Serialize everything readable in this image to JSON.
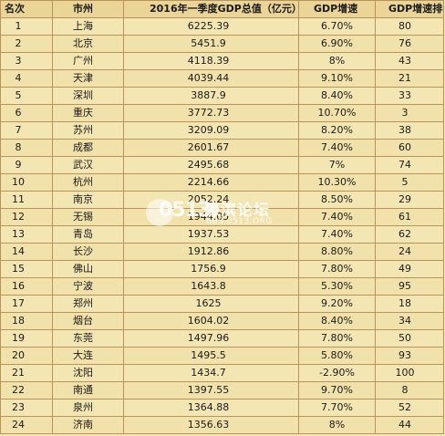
{
  "table": {
    "headers": {
      "rank": "名次",
      "city": "市州",
      "gdp": "2016年一季度GDP总值（亿元）",
      "growth": "GDP增速",
      "growth_rank": "GDP增速排名"
    },
    "rows": [
      {
        "rank": "1",
        "city": "上海",
        "gdp": "6225.39",
        "growth": "6.70%",
        "growth_rank": "80"
      },
      {
        "rank": "2",
        "city": "北京",
        "gdp": "5451.9",
        "growth": "6.90%",
        "growth_rank": "76"
      },
      {
        "rank": "3",
        "city": "广州",
        "gdp": "4118.39",
        "growth": "8%",
        "growth_rank": "43"
      },
      {
        "rank": "4",
        "city": "天津",
        "gdp": "4039.44",
        "growth": "9.10%",
        "growth_rank": "21"
      },
      {
        "rank": "5",
        "city": "深圳",
        "gdp": "3887.9",
        "growth": "8.40%",
        "growth_rank": "33"
      },
      {
        "rank": "6",
        "city": "重庆",
        "gdp": "3772.73",
        "growth": "10.70%",
        "growth_rank": "3"
      },
      {
        "rank": "7",
        "city": "苏州",
        "gdp": "3209.09",
        "growth": "8.20%",
        "growth_rank": "38"
      },
      {
        "rank": "8",
        "city": "成都",
        "gdp": "2601.67",
        "growth": "7.40%",
        "growth_rank": "60"
      },
      {
        "rank": "9",
        "city": "武汉",
        "gdp": "2495.68",
        "growth": "7%",
        "growth_rank": "74"
      },
      {
        "rank": "10",
        "city": "杭州",
        "gdp": "2214.66",
        "growth": "10.30%",
        "growth_rank": "5"
      },
      {
        "rank": "11",
        "city": "南京",
        "gdp": "2052.24",
        "growth": "8.50%",
        "growth_rank": "29"
      },
      {
        "rank": "12",
        "city": "无锡",
        "gdp": "1944.05",
        "growth": "7.40%",
        "growth_rank": "61"
      },
      {
        "rank": "13",
        "city": "青岛",
        "gdp": "1937.53",
        "growth": "7.40%",
        "growth_rank": "62"
      },
      {
        "rank": "14",
        "city": "长沙",
        "gdp": "1912.86",
        "growth": "8.80%",
        "growth_rank": "24"
      },
      {
        "rank": "15",
        "city": "佛山",
        "gdp": "1756.9",
        "growth": "7.80%",
        "growth_rank": "49"
      },
      {
        "rank": "16",
        "city": "宁波",
        "gdp": "1643.8",
        "growth": "5.30%",
        "growth_rank": "95"
      },
      {
        "rank": "17",
        "city": "郑州",
        "gdp": "1625",
        "growth": "9.20%",
        "growth_rank": "18"
      },
      {
        "rank": "18",
        "city": "烟台",
        "gdp": "1604.02",
        "growth": "8.40%",
        "growth_rank": "34"
      },
      {
        "rank": "19",
        "city": "东莞",
        "gdp": "1497.96",
        "growth": "7.80%",
        "growth_rank": "50"
      },
      {
        "rank": "20",
        "city": "大连",
        "gdp": "1495.5",
        "growth": "5.80%",
        "growth_rank": "93"
      },
      {
        "rank": "21",
        "city": "沈阳",
        "gdp": "1434.7",
        "growth": "-2.90%",
        "growth_rank": "100"
      },
      {
        "rank": "22",
        "city": "南通",
        "gdp": "1397.55",
        "growth": "9.70%",
        "growth_rank": "8"
      },
      {
        "rank": "23",
        "city": "泉州",
        "gdp": "1364.88",
        "growth": "7.70%",
        "growth_rank": "52"
      },
      {
        "rank": "24",
        "city": "济南",
        "gdp": "1356.63",
        "growth": "8%",
        "growth_rank": "44"
      }
    ]
  },
  "watermark": {
    "number": "0513",
    "title": "濠滨论坛",
    "url": "BBS.0513.ORG"
  }
}
